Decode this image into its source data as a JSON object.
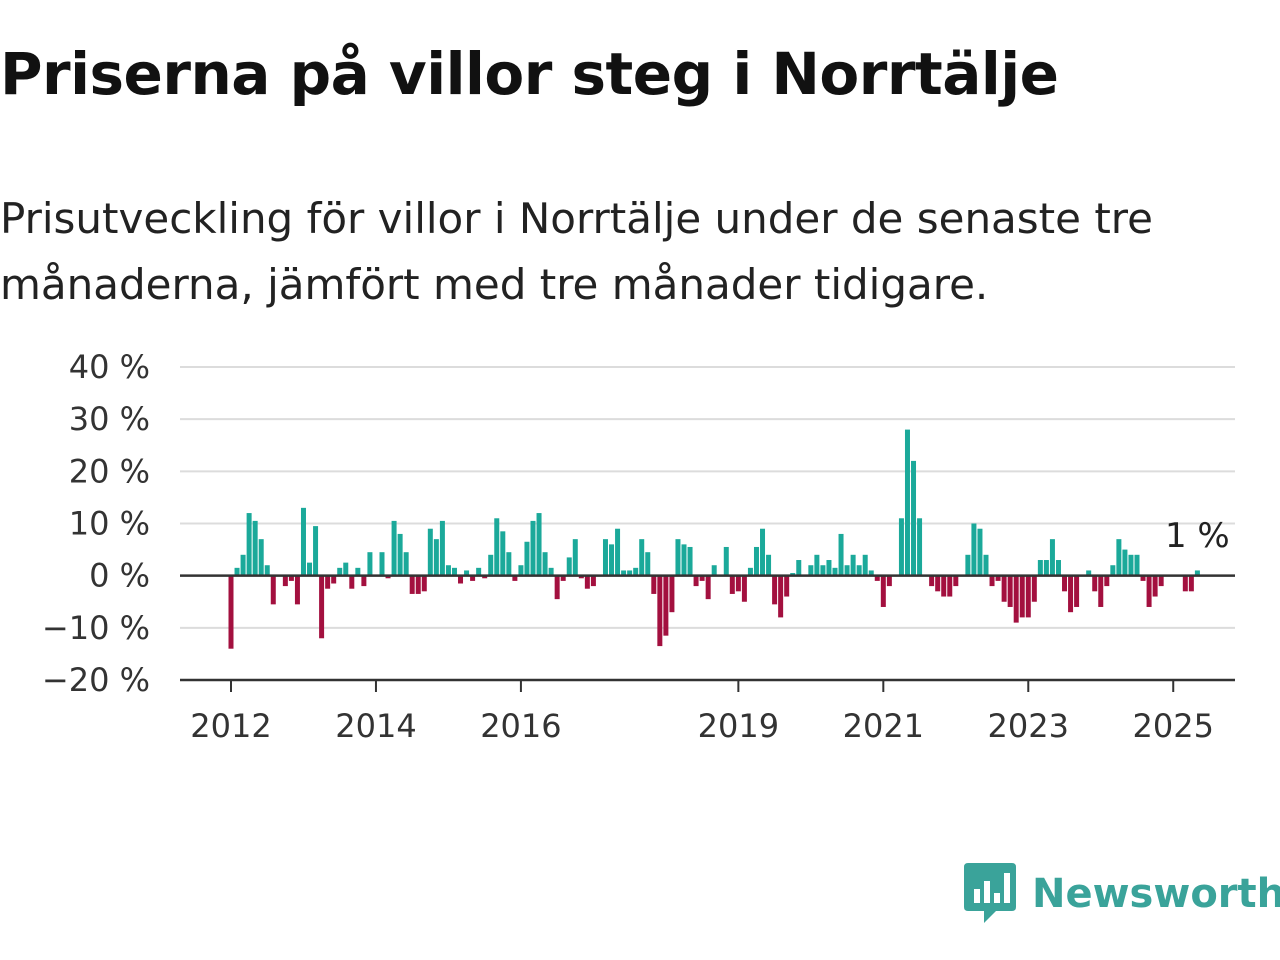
{
  "header": {
    "title": "Priserna på villor steg i Norrtälje",
    "subtitle": "Prisutveckling för villor i Norrtälje under de senaste tre månaderna, jämfört med tre månader tidigare."
  },
  "brand": {
    "name": "Newsworthy",
    "color": "#3aa39a"
  },
  "colors": {
    "positive": "#1ba99a",
    "negative": "#a3103f",
    "grid": "#dcdcdc",
    "axis": "#333333"
  },
  "chart_data": {
    "type": "bar",
    "x_start": "2012-01",
    "x_step": "month",
    "values": [
      -14.0,
      1.5,
      4.0,
      12.0,
      10.5,
      7.0,
      2.0,
      -5.5,
      0.0,
      -2.0,
      -1.0,
      -5.5,
      13.0,
      2.5,
      9.5,
      -12.0,
      -2.5,
      -1.5,
      1.5,
      2.5,
      -2.5,
      1.5,
      -2.0,
      4.5,
      0.0,
      4.5,
      -0.5,
      10.5,
      8.0,
      4.5,
      -3.5,
      -3.5,
      -3.0,
      9.0,
      7.0,
      10.5,
      2.0,
      1.5,
      -1.5,
      1.0,
      -1.0,
      1.5,
      -0.5,
      4.0,
      11.0,
      8.5,
      4.5,
      -1.0,
      2.0,
      6.5,
      10.5,
      12.0,
      4.5,
      1.5,
      -4.5,
      -1.0,
      3.5,
      7.0,
      -0.5,
      -2.5,
      -2.0,
      0.0,
      7.0,
      6.0,
      9.0,
      1.0,
      1.0,
      1.5,
      7.0,
      4.5,
      -3.5,
      -13.5,
      -11.5,
      -7.0,
      7.0,
      6.0,
      5.5,
      -2.0,
      -1.0,
      -4.5,
      2.0,
      0.0,
      5.5,
      -3.5,
      -3.0,
      -5.0,
      1.5,
      5.5,
      9.0,
      4.0,
      -5.5,
      -8.0,
      -4.0,
      0.5,
      3.0,
      0.0,
      2.0,
      4.0,
      2.0,
      3.0,
      1.5,
      8.0,
      2.0,
      4.0,
      2.0,
      4.0,
      1.0,
      -1.0,
      -6.0,
      -2.0,
      0.0,
      11.0,
      28.0,
      22.0,
      11.0,
      0.0,
      -2.0,
      -3.0,
      -4.0,
      -4.0,
      -2.0,
      0.0,
      4.0,
      10.0,
      9.0,
      4.0,
      -2.0,
      -1.0,
      -5.0,
      -6.0,
      -9.0,
      -8.0,
      -8.0,
      -5.0,
      3.0,
      3.0,
      7.0,
      3.0,
      -3.0,
      -7.0,
      -6.0,
      0.0,
      1.0,
      -3.0,
      -6.0,
      -2.0,
      2.0,
      7.0,
      5.0,
      4.0,
      4.0,
      -1.0,
      -6.0,
      -4.0,
      -2.0,
      0.0,
      0.0,
      0.0,
      -3.0,
      -3.0,
      1.0
    ],
    "ylim": [
      -20,
      40
    ],
    "yticks": [
      40,
      30,
      20,
      10,
      0,
      -10,
      -20
    ],
    "ytick_labels": [
      "40 %",
      "30 %",
      "20 %",
      "10 %",
      "0 %",
      "−10 %",
      "−20 %"
    ],
    "xticks": [
      {
        "label": "2012",
        "month_index": 0
      },
      {
        "label": "2014",
        "month_index": 24
      },
      {
        "label": "2016",
        "month_index": 48
      },
      {
        "label": "2019",
        "month_index": 84
      },
      {
        "label": "2021",
        "month_index": 108
      },
      {
        "label": "2023",
        "month_index": 132
      },
      {
        "label": "2025",
        "month_index": 156
      }
    ],
    "annotation": {
      "label": "1 %",
      "month_index": 158
    },
    "grid": true
  }
}
